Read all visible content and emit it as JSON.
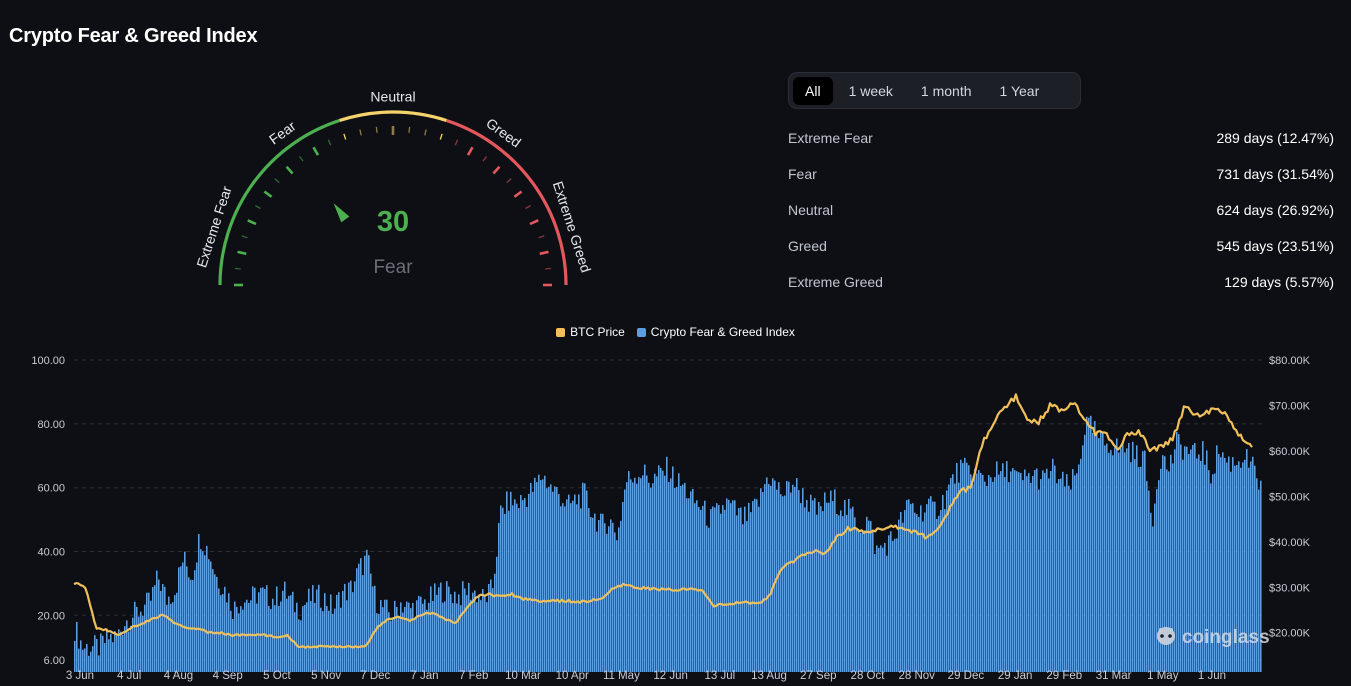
{
  "page": {
    "title": "Crypto Fear & Greed Index"
  },
  "gauge": {
    "value": "30",
    "value_number": 30,
    "classification": "Fear",
    "zone_labels": [
      "Extreme Fear",
      "Fear",
      "Neutral",
      "Greed",
      "Extreme Greed"
    ],
    "colors": {
      "green": "#4caf50",
      "yellow": "#f5d36c",
      "red": "#e4585d",
      "value_text": "#4caf50",
      "classification_text": "#6b6e76"
    }
  },
  "tabs": [
    {
      "label": "All",
      "active": true
    },
    {
      "label": "1 week",
      "active": false
    },
    {
      "label": "1 month",
      "active": false
    },
    {
      "label": "1 Year",
      "active": false
    }
  ],
  "stats": [
    {
      "label": "Extreme Fear",
      "value": "289 days (12.47%)"
    },
    {
      "label": "Fear",
      "value": "731 days (31.54%)"
    },
    {
      "label": "Neutral",
      "value": "624 days (26.92%)"
    },
    {
      "label": "Greed",
      "value": "545 days (23.51%)"
    },
    {
      "label": "Extreme Greed",
      "value": "129 days (5.57%)"
    }
  ],
  "chart_data": {
    "type": "bar",
    "watermark": "coinglass",
    "grid": true,
    "legend_placement": "top-center",
    "series_colors": {
      "btc": "#f0c05a",
      "index": "#5d9ee0"
    },
    "legend": [
      {
        "name": "BTC Price",
        "color": "#f0c05a"
      },
      {
        "name": "Crypto Fear & Greed Index",
        "color": "#5d9ee0"
      }
    ],
    "left_axis": {
      "ticks": [
        "100.00",
        "80.00",
        "60.00",
        "40.00",
        "20.00",
        "6.00"
      ],
      "min": 6,
      "max": 100
    },
    "right_axis": {
      "ticks": [
        "$80.00K",
        "$70.00K",
        "$60.00K",
        "$50.00K",
        "$40.00K",
        "$30.00K",
        "$20.00K"
      ],
      "min": 14000,
      "max": 80000
    },
    "x_ticks": [
      "3 Jun",
      "4 Jul",
      "4 Aug",
      "4 Sep",
      "5 Oct",
      "5 Nov",
      "7 Dec",
      "7 Jan",
      "7 Feb",
      "10 Mar",
      "10 Apr",
      "11 May",
      "12 Jun",
      "13 Jul",
      "13 Aug",
      "27 Sep",
      "28 Oct",
      "28 Nov",
      "29 Dec",
      "29 Jan",
      "29 Feb",
      "31 Mar",
      "1 May",
      "1 Jun"
    ],
    "index_samples": [
      16,
      10,
      10,
      10,
      13,
      13,
      18,
      20,
      22,
      24,
      32,
      25,
      28,
      38,
      32,
      45,
      40,
      32,
      28,
      22,
      25,
      25,
      27,
      26,
      25,
      28,
      24,
      22,
      25,
      26,
      25,
      22,
      27,
      28,
      34,
      38,
      25,
      22,
      20,
      24,
      22,
      23,
      24,
      26,
      28,
      27,
      26,
      28,
      27,
      25,
      28,
      52,
      56,
      55,
      57,
      60,
      64,
      60,
      58,
      54,
      56,
      58,
      52,
      48,
      50,
      45,
      62,
      64,
      65,
      62,
      64,
      66,
      62,
      60,
      56,
      54,
      50,
      52,
      55,
      53,
      50,
      52,
      56,
      64,
      60,
      58,
      62,
      58,
      55,
      52,
      56,
      56,
      54,
      52,
      48,
      50,
      40,
      42,
      44,
      50,
      55,
      52,
      54,
      53,
      56,
      62,
      66,
      65,
      64,
      62,
      65,
      64,
      66,
      62,
      63,
      64,
      62,
      66,
      62,
      60,
      64,
      80,
      78,
      74,
      74,
      72,
      73,
      70,
      70,
      50,
      70,
      66,
      74,
      72,
      70,
      72,
      64,
      72,
      68,
      68,
      70,
      66,
      60
    ],
    "btc_samples": [
      31000,
      30000,
      21000,
      20500,
      19500,
      21000,
      22000,
      23000,
      24000,
      22000,
      21000,
      21000,
      20000,
      20000,
      19500,
      19500,
      19500,
      19500,
      19000,
      19500,
      17000,
      16800,
      17000,
      16900,
      17000,
      16900,
      17000,
      21000,
      23000,
      23500,
      22500,
      24000,
      24500,
      23000,
      22000,
      25500,
      28000,
      28500,
      28000,
      28500,
      27500,
      27200,
      27000,
      27000,
      27000,
      26800,
      27000,
      27500,
      29500,
      30500,
      30000,
      29800,
      29500,
      29500,
      29500,
      29500,
      29300,
      26000,
      26200,
      26500,
      26700,
      26400,
      28000,
      34000,
      35500,
      37000,
      38000,
      37500,
      41000,
      43000,
      42500,
      42000,
      43000,
      43500,
      43000,
      42000,
      41000,
      43000,
      47000,
      51000,
      52000,
      62000,
      66000,
      70000,
      72000,
      67000,
      66500,
      70000,
      69000,
      71000,
      67500,
      64000,
      63500,
      60000,
      64000,
      64000,
      60000,
      61000,
      63000,
      70000,
      68000,
      68500,
      69000,
      67000,
      63000,
      61000
    ]
  }
}
